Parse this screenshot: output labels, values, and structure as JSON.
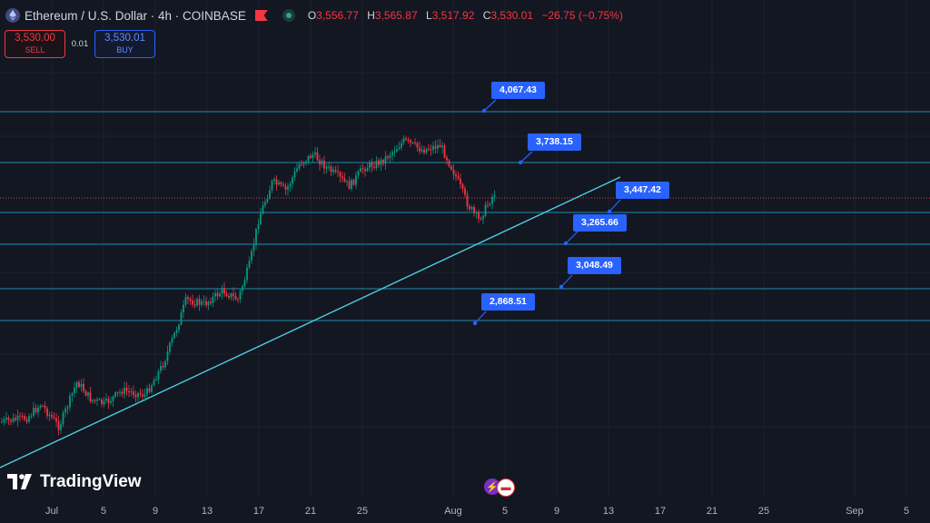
{
  "header": {
    "title": "Ethereum / U.S. Dollar · 4h · COINBASE",
    "ohlc": {
      "o_label": "O",
      "o": "3,556.77",
      "h_label": "H",
      "h": "3,565.87",
      "l_label": "L",
      "l": "3,517.92",
      "c_label": "C",
      "c": "3,530.01",
      "change": "−26.75 (−0.75%)"
    }
  },
  "trade": {
    "sell_price": "3,530.00",
    "sell_label": "SELL",
    "spread": "0.01",
    "buy_price": "3,530.01",
    "buy_label": "BUY"
  },
  "levels": {
    "l1": "4,067.43",
    "l2": "3,738.15",
    "l3": "3,447.42",
    "l4": "3,265.66",
    "l5": "3,048.49",
    "l6": "2,868.51"
  },
  "xaxis": {
    "t0": "Jul",
    "t1": "5",
    "t2": "9",
    "t3": "13",
    "t4": "17",
    "t5": "21",
    "t6": "25",
    "t7": "Aug",
    "t8": "5",
    "t9": "9",
    "t10": "13",
    "t11": "17",
    "t12": "21",
    "t13": "25",
    "t14": "Sep",
    "t15": "5"
  },
  "branding": {
    "logo_text": "TradingView"
  },
  "colors": {
    "bg": "#131722",
    "up": "#089981",
    "down": "#f23645",
    "level_line": "#1e8fb0",
    "trend_line": "#4dd0e1",
    "label_bg": "#2962ff"
  }
}
